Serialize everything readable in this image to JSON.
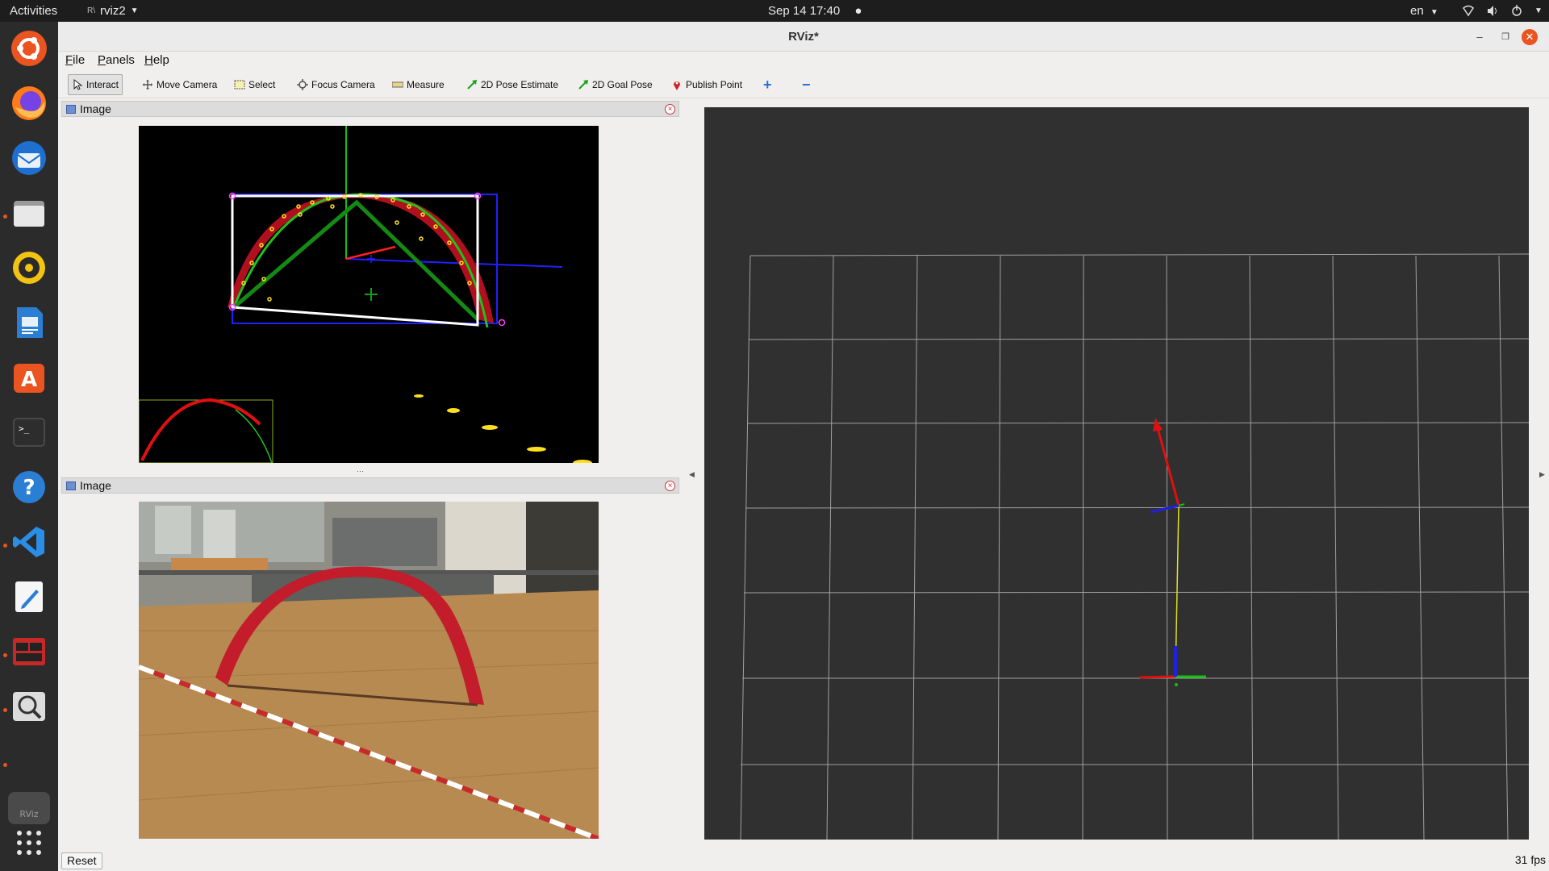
{
  "topbar": {
    "activities": "Activities",
    "app_name": "rviz2",
    "clock": "Sep 14  17:40",
    "language": "en"
  },
  "dock": {
    "items": [
      "ubuntu-icon",
      "firefox-icon",
      "thunderbird-icon",
      "files-icon",
      "rhythmbox-icon",
      "writer-icon",
      "software-icon",
      "terminal-icon",
      "help-icon",
      "vscode-icon",
      "text-editor-icon",
      "rqt-icon",
      "magnifier-icon",
      "rviz-icon",
      "show-apps-icon"
    ]
  },
  "window": {
    "title": "RViz*",
    "menu": [
      "File",
      "Panels",
      "Help"
    ],
    "toolbar": [
      {
        "label": "Interact",
        "icon": "cursor-icon",
        "active": true
      },
      {
        "label": "Move Camera",
        "icon": "move-icon"
      },
      {
        "label": "Select",
        "icon": "select-icon"
      },
      {
        "label": "Focus Camera",
        "icon": "focus-icon"
      },
      {
        "label": "Measure",
        "icon": "ruler-icon"
      },
      {
        "label": "2D Pose Estimate",
        "icon": "green-arrow-icon"
      },
      {
        "label": "2D Goal Pose",
        "icon": "green-arrow-icon"
      },
      {
        "label": "Publish Point",
        "icon": "map-pin-icon"
      }
    ],
    "toolbar_add": "+",
    "toolbar_remove": "−"
  },
  "panels": [
    {
      "title": "Image"
    },
    {
      "title": "Image"
    }
  ],
  "status": {
    "reset_label": "Reset",
    "fps": "31 fps"
  },
  "colors": {
    "accent": "#e95420",
    "viewport_bg": "#303030",
    "grid": "#a0a0a0"
  }
}
